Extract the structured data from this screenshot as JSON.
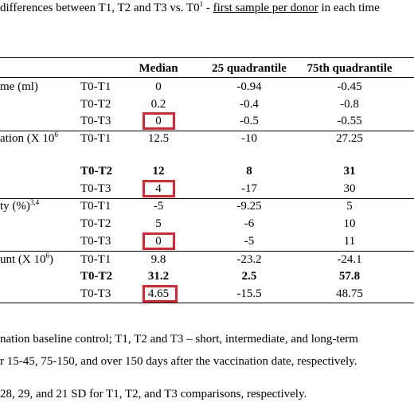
{
  "caption": {
    "prefix": " differences between T1, T2 and T3 vs. T0",
    "sup": "1",
    "dash": " - ",
    "underlined": "first sample per donor",
    "suffix": " in each time"
  },
  "table": {
    "headers": [
      "Median",
      "25 quadrantile",
      "75th quadrantile"
    ],
    "row_labels": [
      {
        "text": "me (ml)",
        "sup": ""
      },
      {
        "text": "ation (X 10",
        "sup": "6"
      },
      {
        "text": "ty (%)",
        "sup": "3,4"
      },
      {
        "text": "unt  (X 10",
        "sup": "6",
        "after": ")"
      }
    ],
    "rows": [
      {
        "cmp": "T0-T1",
        "median": "0",
        "q25": "-0.94",
        "q75": "-0.45",
        "bold": false
      },
      {
        "cmp": "T0-T2",
        "median": "0.2",
        "q25": "-0.4",
        "q75": "-0.8",
        "bold": false
      },
      {
        "cmp": "T0-T3",
        "median": "0",
        "q25": "-0.5",
        "q75": "-0.55",
        "bold": false
      },
      {
        "cmp": "T0-T1",
        "median": "12.5",
        "q25": "-10",
        "q75": "27.25",
        "bold": false
      },
      {
        "cmp": "T0-T2",
        "median": "12",
        "q25": "8",
        "q75": "31",
        "bold": true
      },
      {
        "cmp": "T0-T3",
        "median": "4",
        "q25": "-17",
        "q75": "30",
        "bold": false
      },
      {
        "cmp": "T0-T1",
        "median": "-5",
        "q25": "-9.25",
        "q75": "5",
        "bold": false
      },
      {
        "cmp": "T0-T2",
        "median": "5",
        "q25": "-6",
        "q75": "10",
        "bold": false
      },
      {
        "cmp": "T0-T3",
        "median": "0",
        "q25": "-5",
        "q75": "11",
        "bold": false
      },
      {
        "cmp": "T0-T1",
        "median": "9.8",
        "q25": "-23.2",
        "q75": "-24.1",
        "bold": false
      },
      {
        "cmp": "T0-T2",
        "median": "31.2",
        "q25": "2.5",
        "q75": "57.8",
        "bold": true
      },
      {
        "cmp": "T0-T3",
        "median": "4.65",
        "q25": "-15.5",
        "q75": "48.75",
        "bold": false
      }
    ],
    "highlight_color": "#e0242f"
  },
  "footnotes": [
    "nation baseline control; T1, T2 and T3 – short, intermediate, and long-term",
    "r 15-45, 75-150, and over 150 days after the vaccination date, respectively.",
    "28, 29, and 21 SD for T1, T2, and T3 comparisons, respectively."
  ]
}
